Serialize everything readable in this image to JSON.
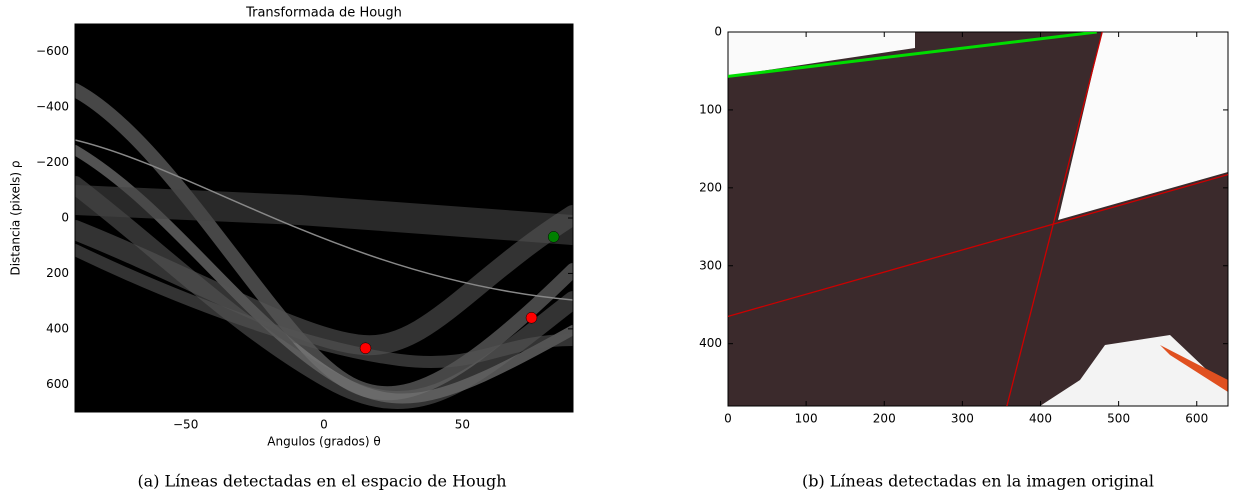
{
  "chart_data": [
    {
      "type": "scatter",
      "title": "Transformada de Hough",
      "xlabel": "Angulos (grados) θ",
      "ylabel": "Distancia (pixels) ρ",
      "xlim": [
        -90,
        90
      ],
      "ylim": [
        700,
        -700
      ],
      "xticks": [
        {
          "value": -50,
          "label": "−50"
        },
        0,
        50
      ],
      "yticks": [
        {
          "value": -600,
          "label": "−600"
        },
        {
          "value": -400,
          "label": "−400"
        },
        {
          "value": -200,
          "label": "−200"
        },
        0,
        200,
        400,
        600
      ],
      "series": [
        {
          "color": "#ff0000",
          "x": [
            15,
            75
          ],
          "y": [
            470,
            360
          ]
        },
        {
          "color": "#008000",
          "x": [
            83
          ],
          "y": [
            68
          ]
        }
      ]
    },
    {
      "type": "image",
      "xlim": [
        0,
        640
      ],
      "ylim": [
        480,
        0
      ],
      "xticks": [
        0,
        100,
        200,
        300,
        400,
        500,
        600
      ],
      "yticks": [
        0,
        100,
        200,
        300,
        400
      ],
      "lines": [
        {
          "color": "#00dd00",
          "x": [
            0,
            472
          ],
          "y": [
            57,
            0
          ]
        },
        {
          "color": "#cc0000",
          "x": [
            0,
            640
          ],
          "y": [
            365,
            183
          ]
        },
        {
          "color": "#cc0000",
          "x": [
            357,
            479
          ],
          "y": [
            480,
            0
          ]
        }
      ]
    }
  ],
  "captions": [
    "(a) Líneas detectadas en el espacio de Hough",
    "(b) Líneas detectadas en la imagen original"
  ]
}
